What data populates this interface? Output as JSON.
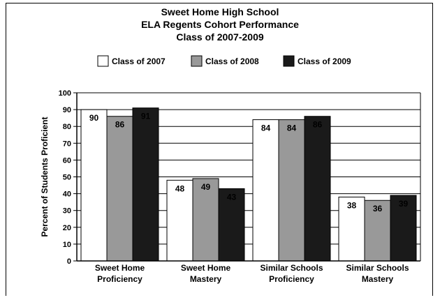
{
  "chart_data": {
    "type": "bar",
    "title_lines": [
      "Sweet Home High School",
      "ELA Regents Cohort Performance",
      "Class of 2007-2009"
    ],
    "ylabel": "Percent of Students Proficient",
    "xlabel": "",
    "ylim": [
      0,
      100
    ],
    "yticks": [
      0,
      10,
      20,
      30,
      40,
      50,
      60,
      70,
      80,
      90,
      100
    ],
    "grid": true,
    "legend": "top",
    "categories": [
      [
        "Sweet Home",
        "Proficiency"
      ],
      [
        "Sweet Home",
        "Mastery"
      ],
      [
        "Similar Schools",
        "Proficiency"
      ],
      [
        "Similar Schools",
        "Mastery"
      ]
    ],
    "series": [
      {
        "name": "Class of 2007",
        "color": "#ffffff",
        "label_color": "#000000",
        "values": [
          90,
          48,
          84,
          38
        ]
      },
      {
        "name": "Class of 2008",
        "color": "#999999",
        "label_color": "#000000",
        "values": [
          86,
          49,
          84,
          36
        ]
      },
      {
        "name": "Class of 2009",
        "color": "#1a1a1a",
        "label_color": "#ffffff",
        "values": [
          91,
          43,
          86,
          39
        ]
      }
    ]
  }
}
